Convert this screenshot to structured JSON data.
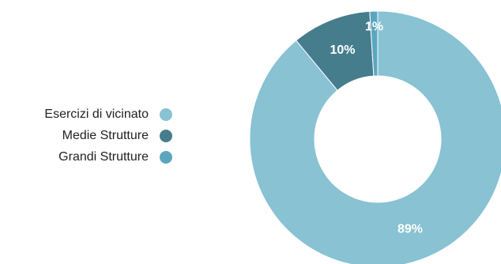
{
  "chart_data": {
    "type": "pie",
    "title": "",
    "legend_position": "left",
    "hole": true,
    "slices": [
      {
        "label": "Esercizi di vicinato",
        "value": 89,
        "display": "89%",
        "color": "#88c2d3"
      },
      {
        "label": "Medie Strutture",
        "value": 10,
        "display": "10%",
        "color": "#467d8c"
      },
      {
        "label": "Grandi Strutture",
        "value": 1,
        "display": "1%",
        "color": "#5aa6bf"
      }
    ]
  }
}
